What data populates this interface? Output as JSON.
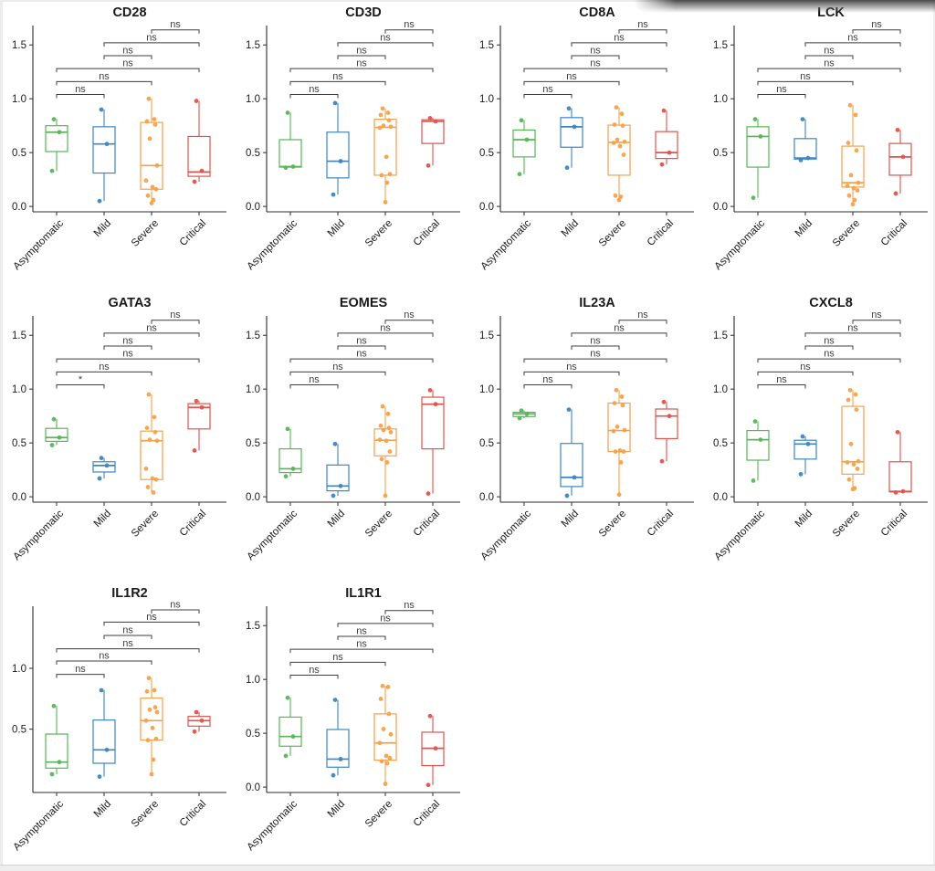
{
  "figure": {
    "groups": [
      "Asymptomatic",
      "Mild",
      "Severe",
      "Critical"
    ],
    "group_colors": [
      "#57b657",
      "#3e86c0",
      "#f5a14b",
      "#e0534c"
    ],
    "axis_color": "#2b2b2b",
    "bracket_color": "#3f3f3f",
    "text_color": "#1a1a1a",
    "comparison_pairs": [
      [
        0,
        1
      ],
      [
        0,
        2
      ],
      [
        0,
        3
      ],
      [
        1,
        2
      ],
      [
        1,
        3
      ],
      [
        2,
        3
      ]
    ]
  },
  "chart_data": [
    {
      "type": "boxplot",
      "title": "CD28",
      "ylim": [
        -0.05,
        1.68
      ],
      "yticks": [
        "0.0",
        "0.5",
        "1.0",
        "1.5"
      ],
      "ytick_values": [
        0.0,
        0.5,
        1.0,
        1.5
      ],
      "boxes": [
        {
          "group": "Asymptomatic",
          "lo": 0.33,
          "q1": 0.51,
          "median": 0.69,
          "q3": 0.75,
          "hi": 0.81,
          "points": [
            0.81,
            0.69,
            0.33
          ]
        },
        {
          "group": "Mild",
          "lo": 0.05,
          "q1": 0.31,
          "median": 0.58,
          "q3": 0.74,
          "hi": 0.9,
          "points": [
            0.9,
            0.58,
            0.05
          ]
        },
        {
          "group": "Severe",
          "lo": 0.03,
          "q1": 0.16,
          "median": 0.38,
          "q3": 0.78,
          "hi": 1.0,
          "points": [
            1.0,
            0.81,
            0.79,
            0.76,
            0.63,
            0.38,
            0.24,
            0.18,
            0.16,
            0.1,
            0.06,
            0.03
          ]
        },
        {
          "group": "Critical",
          "lo": 0.23,
          "q1": 0.28,
          "median": 0.32,
          "q3": 0.65,
          "hi": 0.98,
          "points": [
            0.98,
            0.33,
            0.23
          ]
        }
      ],
      "sig_labels": [
        "ns",
        "ns",
        "ns",
        "ns",
        "ns",
        "ns"
      ],
      "bracket_y": [
        1.04,
        1.16,
        1.28,
        1.4,
        1.52,
        1.64
      ]
    },
    {
      "type": "boxplot",
      "title": "CD3D",
      "ylim": [
        -0.05,
        1.68
      ],
      "yticks": [
        "0.0",
        "0.5",
        "1.0",
        "1.5"
      ],
      "ytick_values": [
        0.0,
        0.5,
        1.0,
        1.5
      ],
      "boxes": [
        {
          "group": "Asymptomatic",
          "lo": 0.36,
          "q1": 0.365,
          "median": 0.37,
          "q3": 0.62,
          "hi": 0.87,
          "points": [
            0.87,
            0.37,
            0.36
          ]
        },
        {
          "group": "Mild",
          "lo": 0.11,
          "q1": 0.265,
          "median": 0.42,
          "q3": 0.69,
          "hi": 0.96,
          "points": [
            0.96,
            0.42,
            0.11
          ]
        },
        {
          "group": "Severe",
          "lo": 0.04,
          "q1": 0.29,
          "median": 0.735,
          "q3": 0.81,
          "hi": 0.91,
          "points": [
            0.91,
            0.87,
            0.85,
            0.8,
            0.75,
            0.74,
            0.73,
            0.46,
            0.3,
            0.29,
            0.22,
            0.04
          ]
        },
        {
          "group": "Critical",
          "lo": 0.38,
          "q1": 0.585,
          "median": 0.79,
          "q3": 0.805,
          "hi": 0.82,
          "points": [
            0.82,
            0.79,
            0.38
          ]
        }
      ],
      "sig_labels": [
        "ns",
        "ns",
        "ns",
        "ns",
        "ns",
        "ns"
      ],
      "bracket_y": [
        1.04,
        1.16,
        1.28,
        1.4,
        1.52,
        1.64
      ]
    },
    {
      "type": "boxplot",
      "title": "CD8A",
      "ylim": [
        -0.05,
        1.68
      ],
      "yticks": [
        "0.0",
        "0.5",
        "1.0",
        "1.5"
      ],
      "ytick_values": [
        0.0,
        0.5,
        1.0,
        1.5
      ],
      "boxes": [
        {
          "group": "Asymptomatic",
          "lo": 0.3,
          "q1": 0.46,
          "median": 0.62,
          "q3": 0.71,
          "hi": 0.8,
          "points": [
            0.8,
            0.62,
            0.3
          ]
        },
        {
          "group": "Mild",
          "lo": 0.36,
          "q1": 0.55,
          "median": 0.74,
          "q3": 0.825,
          "hi": 0.91,
          "points": [
            0.91,
            0.74,
            0.36
          ]
        },
        {
          "group": "Severe",
          "lo": 0.06,
          "q1": 0.29,
          "median": 0.595,
          "q3": 0.755,
          "hi": 0.92,
          "points": [
            0.92,
            0.86,
            0.76,
            0.75,
            0.62,
            0.6,
            0.59,
            0.56,
            0.48,
            0.1,
            0.09,
            0.06
          ]
        },
        {
          "group": "Critical",
          "lo": 0.39,
          "q1": 0.445,
          "median": 0.5,
          "q3": 0.695,
          "hi": 0.89,
          "points": [
            0.89,
            0.5,
            0.39
          ]
        }
      ],
      "sig_labels": [
        "ns",
        "ns",
        "ns",
        "ns",
        "ns",
        "ns"
      ],
      "bracket_y": [
        1.04,
        1.16,
        1.28,
        1.4,
        1.52,
        1.64
      ]
    },
    {
      "type": "boxplot",
      "title": "LCK",
      "ylim": [
        -0.05,
        1.68
      ],
      "yticks": [
        "0.0",
        "0.5",
        "1.0",
        "1.5"
      ],
      "ytick_values": [
        0.0,
        0.5,
        1.0,
        1.5
      ],
      "boxes": [
        {
          "group": "Asymptomatic",
          "lo": 0.08,
          "q1": 0.365,
          "median": 0.65,
          "q3": 0.74,
          "hi": 0.81,
          "points": [
            0.81,
            0.65,
            0.08
          ]
        },
        {
          "group": "Mild",
          "lo": 0.43,
          "q1": 0.44,
          "median": 0.45,
          "q3": 0.63,
          "hi": 0.81,
          "points": [
            0.81,
            0.45,
            0.43
          ]
        },
        {
          "group": "Severe",
          "lo": 0.02,
          "q1": 0.18,
          "median": 0.22,
          "q3": 0.56,
          "hi": 0.94,
          "points": [
            0.94,
            0.85,
            0.59,
            0.52,
            0.29,
            0.22,
            0.19,
            0.17,
            0.15,
            0.1,
            0.06,
            0.02
          ]
        },
        {
          "group": "Critical",
          "lo": 0.12,
          "q1": 0.29,
          "median": 0.46,
          "q3": 0.585,
          "hi": 0.71,
          "points": [
            0.71,
            0.46,
            0.12
          ]
        }
      ],
      "sig_labels": [
        "ns",
        "ns",
        "ns",
        "ns",
        "ns",
        "ns"
      ],
      "bracket_y": [
        1.04,
        1.16,
        1.28,
        1.4,
        1.52,
        1.64
      ]
    },
    {
      "type": "boxplot",
      "title": "GATA3",
      "ylim": [
        -0.05,
        1.68
      ],
      "yticks": [
        "0.0",
        "0.5",
        "1.0",
        "1.5"
      ],
      "ytick_values": [
        0.0,
        0.5,
        1.0,
        1.5
      ],
      "boxes": [
        {
          "group": "Asymptomatic",
          "lo": 0.48,
          "q1": 0.515,
          "median": 0.55,
          "q3": 0.635,
          "hi": 0.72,
          "points": [
            0.72,
            0.55,
            0.48
          ]
        },
        {
          "group": "Mild",
          "lo": 0.17,
          "q1": 0.23,
          "median": 0.29,
          "q3": 0.325,
          "hi": 0.36,
          "points": [
            0.36,
            0.29,
            0.17
          ]
        },
        {
          "group": "Severe",
          "lo": 0.04,
          "q1": 0.16,
          "median": 0.52,
          "q3": 0.61,
          "hi": 0.95,
          "points": [
            0.95,
            0.74,
            0.64,
            0.6,
            0.53,
            0.52,
            0.26,
            0.17,
            0.16,
            0.09,
            0.04
          ]
        },
        {
          "group": "Critical",
          "lo": 0.43,
          "q1": 0.63,
          "median": 0.83,
          "q3": 0.865,
          "hi": 0.89,
          "points": [
            0.89,
            0.83,
            0.43
          ]
        }
      ],
      "sig_labels": [
        "*",
        "ns",
        "ns",
        "ns",
        "ns",
        "ns"
      ],
      "bracket_y": [
        1.04,
        1.16,
        1.28,
        1.4,
        1.52,
        1.64
      ]
    },
    {
      "type": "boxplot",
      "title": "EOMES",
      "ylim": [
        -0.05,
        1.68
      ],
      "yticks": [
        "0.0",
        "0.5",
        "1.0",
        "1.5"
      ],
      "ytick_values": [
        0.0,
        0.5,
        1.0,
        1.5
      ],
      "boxes": [
        {
          "group": "Asymptomatic",
          "lo": 0.19,
          "q1": 0.225,
          "median": 0.26,
          "q3": 0.445,
          "hi": 0.63,
          "points": [
            0.63,
            0.26,
            0.19
          ]
        },
        {
          "group": "Mild",
          "lo": 0.01,
          "q1": 0.055,
          "median": 0.1,
          "q3": 0.295,
          "hi": 0.49,
          "points": [
            0.49,
            0.1,
            0.01
          ]
        },
        {
          "group": "Severe",
          "lo": 0.01,
          "q1": 0.38,
          "median": 0.525,
          "q3": 0.63,
          "hi": 0.84,
          "points": [
            0.84,
            0.77,
            0.66,
            0.64,
            0.62,
            0.6,
            0.53,
            0.52,
            0.42,
            0.35,
            0.32,
            0.01
          ]
        },
        {
          "group": "Critical",
          "lo": 0.03,
          "q1": 0.445,
          "median": 0.86,
          "q3": 0.925,
          "hi": 0.99,
          "points": [
            0.99,
            0.86,
            0.03
          ]
        }
      ],
      "sig_labels": [
        "ns",
        "ns",
        "ns",
        "ns",
        "ns",
        "ns"
      ],
      "bracket_y": [
        1.04,
        1.16,
        1.28,
        1.4,
        1.52,
        1.64
      ]
    },
    {
      "type": "boxplot",
      "title": "IL23A",
      "ylim": [
        -0.05,
        1.68
      ],
      "yticks": [
        "0.0",
        "0.5",
        "1.0",
        "1.5"
      ],
      "ytick_values": [
        0.0,
        0.5,
        1.0,
        1.5
      ],
      "boxes": [
        {
          "group": "Asymptomatic",
          "lo": 0.73,
          "q1": 0.745,
          "median": 0.77,
          "q3": 0.785,
          "hi": 0.8,
          "points": [
            0.8,
            0.77,
            0.73
          ]
        },
        {
          "group": "Mild",
          "lo": 0.01,
          "q1": 0.095,
          "median": 0.18,
          "q3": 0.495,
          "hi": 0.81,
          "points": [
            0.81,
            0.18,
            0.01
          ]
        },
        {
          "group": "Severe",
          "lo": 0.02,
          "q1": 0.42,
          "median": 0.615,
          "q3": 0.87,
          "hi": 0.99,
          "points": [
            0.99,
            0.93,
            0.87,
            0.85,
            0.65,
            0.62,
            0.61,
            0.43,
            0.42,
            0.42,
            0.32,
            0.02
          ]
        },
        {
          "group": "Critical",
          "lo": 0.33,
          "q1": 0.54,
          "median": 0.75,
          "q3": 0.815,
          "hi": 0.88,
          "points": [
            0.88,
            0.75,
            0.33
          ]
        }
      ],
      "sig_labels": [
        "ns",
        "ns",
        "ns",
        "ns",
        "ns",
        "ns"
      ],
      "bracket_y": [
        1.04,
        1.16,
        1.28,
        1.4,
        1.52,
        1.64
      ]
    },
    {
      "type": "boxplot",
      "title": "CXCL8",
      "ylim": [
        -0.05,
        1.68
      ],
      "yticks": [
        "0.0",
        "0.5",
        "1.0",
        "1.5"
      ],
      "ytick_values": [
        0.0,
        0.5,
        1.0,
        1.5
      ],
      "boxes": [
        {
          "group": "Asymptomatic",
          "lo": 0.15,
          "q1": 0.34,
          "median": 0.53,
          "q3": 0.615,
          "hi": 0.7,
          "points": [
            0.7,
            0.53,
            0.15
          ]
        },
        {
          "group": "Mild",
          "lo": 0.21,
          "q1": 0.35,
          "median": 0.49,
          "q3": 0.525,
          "hi": 0.56,
          "points": [
            0.56,
            0.49,
            0.21
          ]
        },
        {
          "group": "Severe",
          "lo": 0.07,
          "q1": 0.21,
          "median": 0.325,
          "q3": 0.84,
          "hi": 0.99,
          "points": [
            0.99,
            0.95,
            0.9,
            0.81,
            0.49,
            0.33,
            0.32,
            0.3,
            0.26,
            0.16,
            0.08,
            0.07
          ]
        },
        {
          "group": "Critical",
          "lo": 0.04,
          "q1": 0.045,
          "median": 0.05,
          "q3": 0.325,
          "hi": 0.6,
          "points": [
            0.6,
            0.05,
            0.04
          ]
        }
      ],
      "sig_labels": [
        "ns",
        "ns",
        "ns",
        "ns",
        "ns",
        "ns"
      ],
      "bracket_y": [
        1.04,
        1.16,
        1.28,
        1.4,
        1.52,
        1.64
      ]
    },
    {
      "type": "boxplot",
      "title": "IL1R2",
      "ylim": [
        -0.02,
        1.51
      ],
      "yticks": [
        "0.5",
        "1.0"
      ],
      "ytick_values": [
        0.5,
        1.0
      ],
      "boxes": [
        {
          "group": "Asymptomatic",
          "lo": 0.13,
          "q1": 0.18,
          "median": 0.23,
          "q3": 0.46,
          "hi": 0.69,
          "points": [
            0.69,
            0.23,
            0.13
          ]
        },
        {
          "group": "Mild",
          "lo": 0.11,
          "q1": 0.22,
          "median": 0.33,
          "q3": 0.575,
          "hi": 0.82,
          "points": [
            0.82,
            0.33,
            0.11
          ]
        },
        {
          "group": "Severe",
          "lo": 0.13,
          "q1": 0.41,
          "median": 0.57,
          "q3": 0.755,
          "hi": 0.92,
          "points": [
            0.92,
            0.82,
            0.81,
            0.68,
            0.66,
            0.64,
            0.57,
            0.51,
            0.42,
            0.41,
            0.25,
            0.13
          ]
        },
        {
          "group": "Critical",
          "lo": 0.48,
          "q1": 0.525,
          "median": 0.57,
          "q3": 0.605,
          "hi": 0.64,
          "points": [
            0.64,
            0.57,
            0.48
          ]
        }
      ],
      "sig_labels": [
        "ns",
        "ns",
        "ns",
        "ns",
        "ns",
        "ns"
      ],
      "bracket_y": [
        0.95,
        1.06,
        1.16,
        1.27,
        1.38,
        1.48
      ]
    },
    {
      "type": "boxplot",
      "title": "IL1R1",
      "ylim": [
        -0.05,
        1.68
      ],
      "yticks": [
        "0.0",
        "0.5",
        "1.0",
        "1.5"
      ],
      "ytick_values": [
        0.0,
        0.5,
        1.0,
        1.5
      ],
      "boxes": [
        {
          "group": "Asymptomatic",
          "lo": 0.29,
          "q1": 0.38,
          "median": 0.47,
          "q3": 0.65,
          "hi": 0.83,
          "points": [
            0.83,
            0.47,
            0.29
          ]
        },
        {
          "group": "Mild",
          "lo": 0.11,
          "q1": 0.185,
          "median": 0.26,
          "q3": 0.535,
          "hi": 0.81,
          "points": [
            0.81,
            0.26,
            0.11
          ]
        },
        {
          "group": "Severe",
          "lo": 0.03,
          "q1": 0.25,
          "median": 0.41,
          "q3": 0.68,
          "hi": 0.94,
          "points": [
            0.94,
            0.93,
            0.82,
            0.68,
            0.54,
            0.49,
            0.41,
            0.29,
            0.27,
            0.24,
            0.22,
            0.03
          ]
        },
        {
          "group": "Critical",
          "lo": 0.02,
          "q1": 0.2,
          "median": 0.36,
          "q3": 0.51,
          "hi": 0.66,
          "points": [
            0.66,
            0.36,
            0.02
          ]
        }
      ],
      "sig_labels": [
        "ns",
        "ns",
        "ns",
        "ns",
        "ns",
        "ns"
      ],
      "bracket_y": [
        1.04,
        1.16,
        1.28,
        1.4,
        1.52,
        1.64
      ]
    }
  ]
}
